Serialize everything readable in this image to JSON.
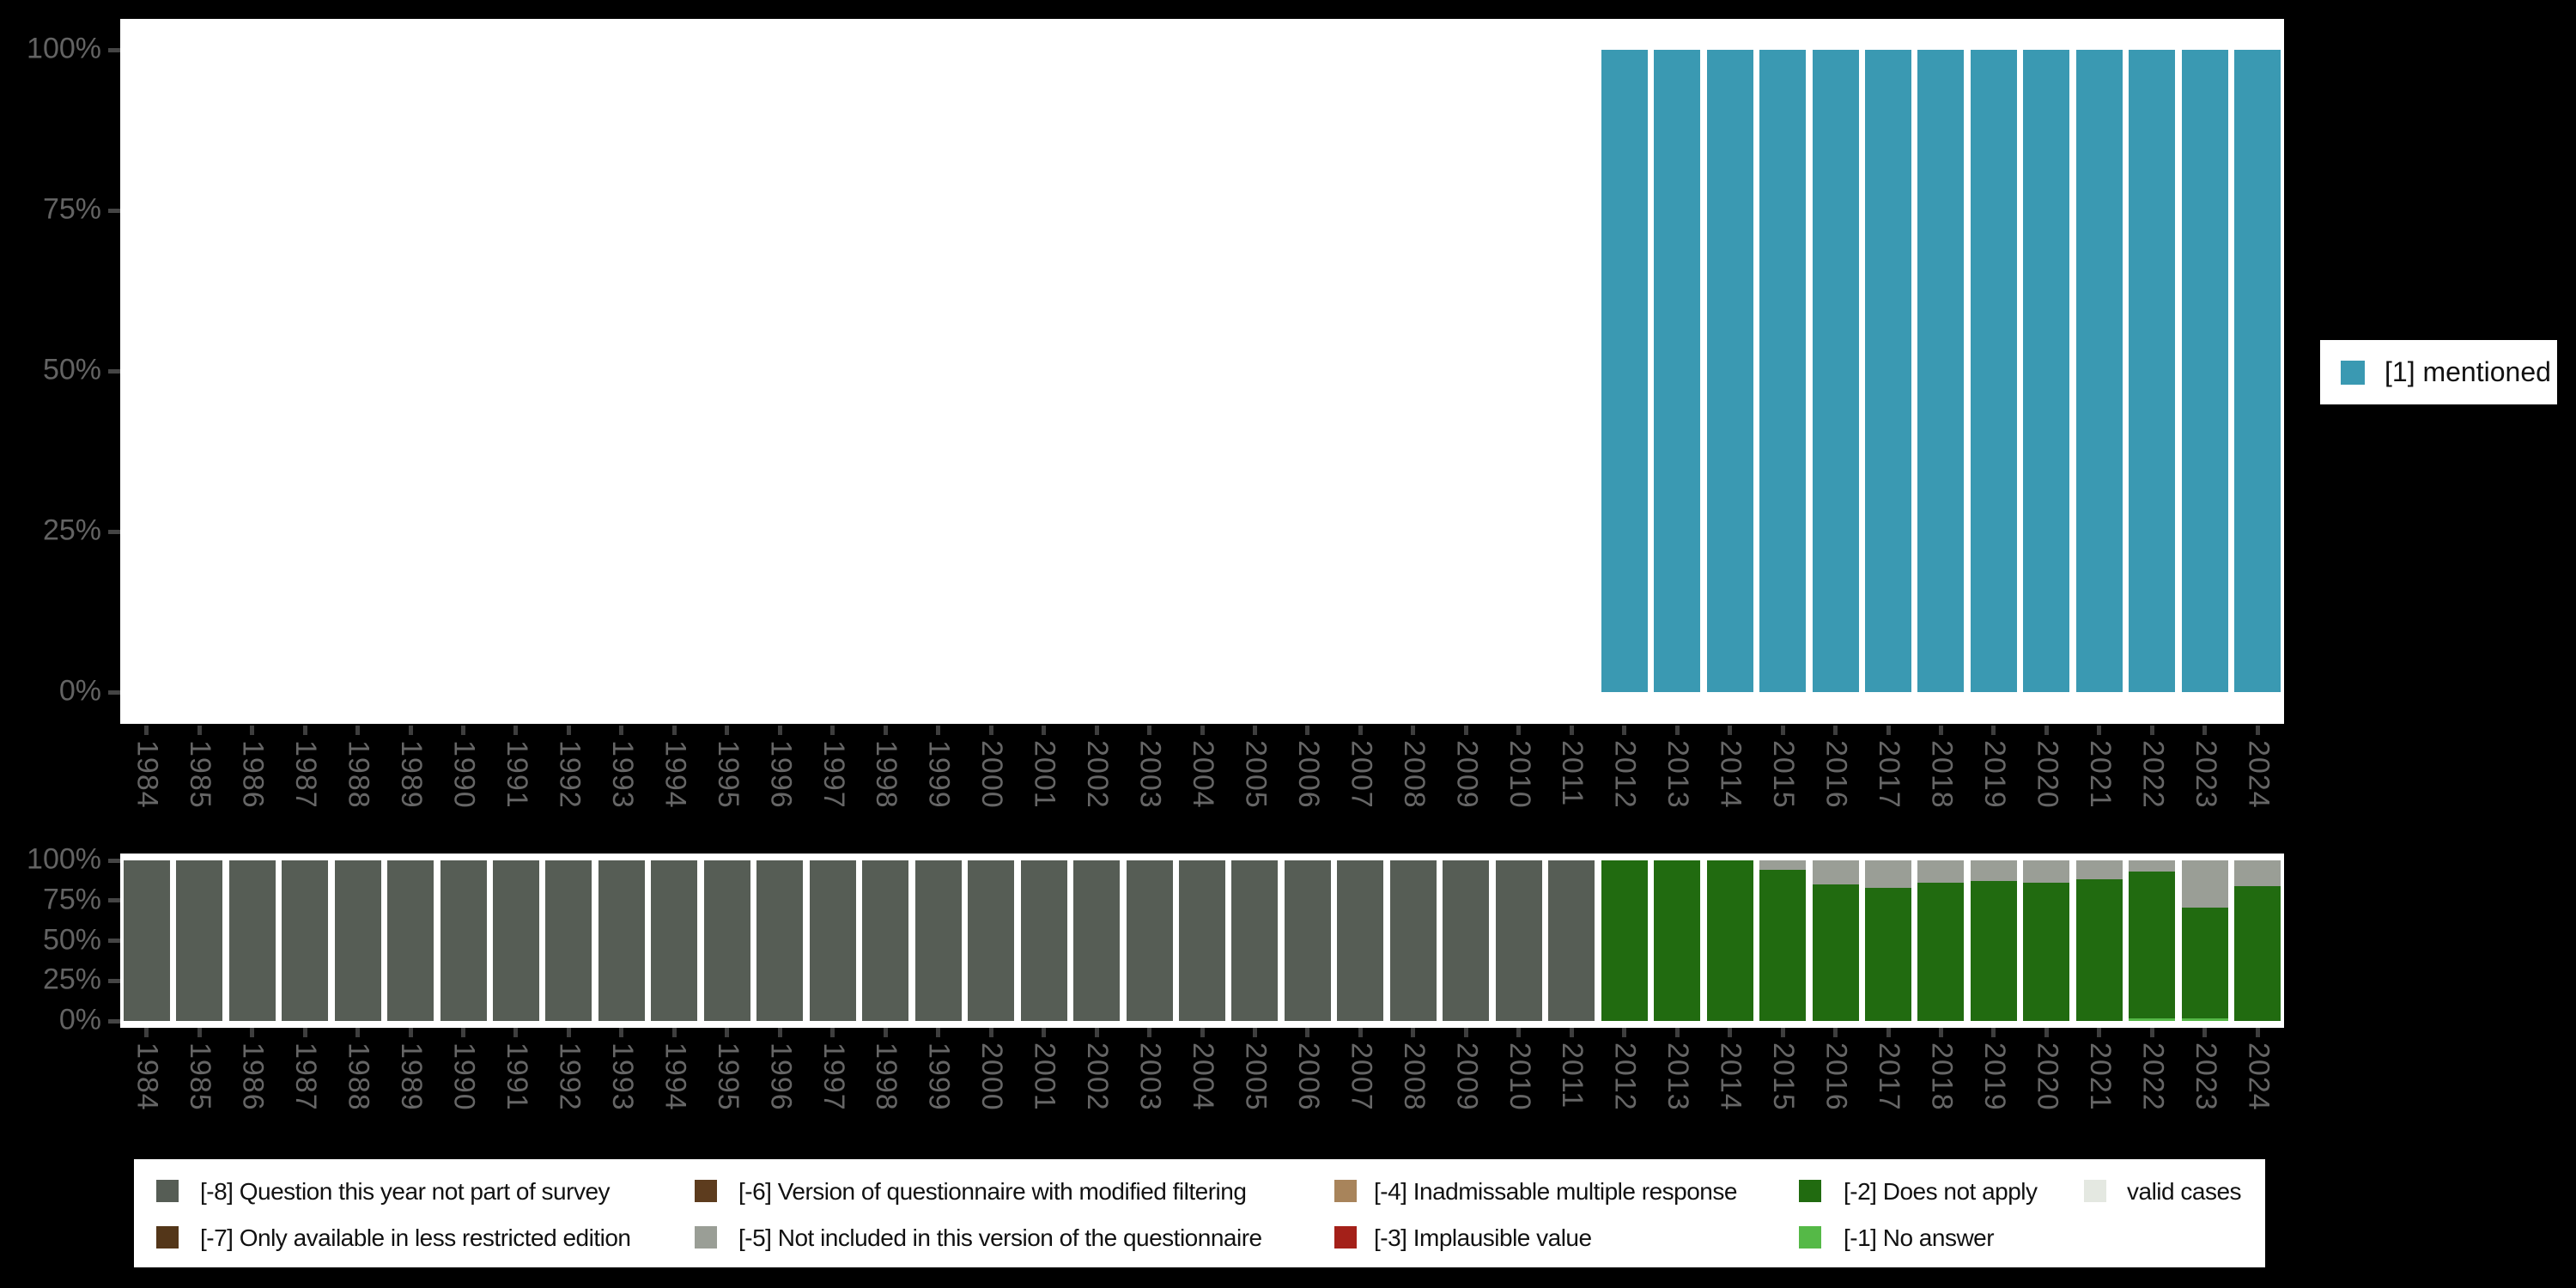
{
  "colors": {
    "background": "#000000",
    "panel": "#FFFFFF",
    "axis_text": "#666666",
    "tick_mark": "#404040",
    "legend_text": "#111111",
    "legend_bg": "#FFFFFF"
  },
  "top_legend": {
    "label": "[1] mentioned",
    "color": "#3A99B2"
  },
  "bottom_legend": {
    "items": [
      {
        "label": "[-8] Question this year not part of survey",
        "color": "#565D55"
      },
      {
        "label": "[-7] Only available in less restricted edition",
        "color": "#533619"
      },
      {
        "label": "[-6] Version of questionnaire with modified filtering",
        "color": "#5D3C1E"
      },
      {
        "label": "[-5] Not included in this version of the questionnaire",
        "color": "#9A9E96"
      },
      {
        "label": "[-4] Inadmissable multiple response",
        "color": "#A8845B"
      },
      {
        "label": "[-3] Implausible value",
        "color": "#A42019"
      },
      {
        "label": "[-2] Does not apply",
        "color": "#216B10"
      },
      {
        "label": "[-1] No answer",
        "color": "#55B947"
      },
      {
        "label": "valid cases",
        "color": "#E4E8E1"
      }
    ]
  },
  "chart_data": [
    {
      "type": "bar",
      "title": "",
      "xlabel": "",
      "ylabel": "",
      "ylim": [
        0,
        100
      ],
      "yticks": [
        "0%",
        "25%",
        "50%",
        "75%",
        "100%"
      ],
      "grid": false,
      "legend_position": "right",
      "categories": [
        "1984",
        "1985",
        "1986",
        "1987",
        "1988",
        "1989",
        "1990",
        "1991",
        "1992",
        "1993",
        "1994",
        "1995",
        "1996",
        "1997",
        "1998",
        "1999",
        "2000",
        "2001",
        "2002",
        "2003",
        "2004",
        "2005",
        "2006",
        "2007",
        "2008",
        "2009",
        "2010",
        "2011",
        "2012",
        "2013",
        "2014",
        "2015",
        "2016",
        "2017",
        "2018",
        "2019",
        "2020",
        "2021",
        "2022",
        "2023",
        "2024"
      ],
      "series": [
        {
          "name": "[1] mentioned",
          "color": "#3A99B2",
          "values": [
            null,
            null,
            null,
            null,
            null,
            null,
            null,
            null,
            null,
            null,
            null,
            null,
            null,
            null,
            null,
            null,
            null,
            null,
            null,
            null,
            null,
            null,
            null,
            null,
            null,
            null,
            null,
            null,
            100,
            100,
            100,
            100,
            100,
            100,
            100,
            100,
            100,
            100,
            100,
            100,
            100
          ]
        }
      ]
    },
    {
      "type": "stacked_bar",
      "title": "",
      "xlabel": "",
      "ylabel": "",
      "ylim": [
        0,
        100
      ],
      "yticks": [
        "0%",
        "25%",
        "50%",
        "75%",
        "100%"
      ],
      "grid": false,
      "legend_position": "bottom",
      "stack_order": "legend order top-to-bottom",
      "categories": [
        "1984",
        "1985",
        "1986",
        "1987",
        "1988",
        "1989",
        "1990",
        "1991",
        "1992",
        "1993",
        "1994",
        "1995",
        "1996",
        "1997",
        "1998",
        "1999",
        "2000",
        "2001",
        "2002",
        "2003",
        "2004",
        "2005",
        "2006",
        "2007",
        "2008",
        "2009",
        "2010",
        "2011",
        "2012",
        "2013",
        "2014",
        "2015",
        "2016",
        "2017",
        "2018",
        "2019",
        "2020",
        "2021",
        "2022",
        "2023",
        "2024"
      ],
      "series": [
        {
          "name": "[-8] Question this year not part of survey",
          "color": "#565D55",
          "values": [
            100,
            100,
            100,
            100,
            100,
            100,
            100,
            100,
            100,
            100,
            100,
            100,
            100,
            100,
            100,
            100,
            100,
            100,
            100,
            100,
            100,
            100,
            100,
            100,
            100,
            100,
            100,
            100,
            0,
            0,
            0,
            0,
            0,
            0,
            0,
            0,
            0,
            0,
            0,
            0,
            0
          ]
        },
        {
          "name": "[-7] Only available in less restricted edition",
          "color": "#533619",
          "values": [
            0,
            0,
            0,
            0,
            0,
            0,
            0,
            0,
            0,
            0,
            0,
            0,
            0,
            0,
            0,
            0,
            0,
            0,
            0,
            0,
            0,
            0,
            0,
            0,
            0,
            0,
            0,
            0,
            0,
            0,
            0,
            0,
            0,
            0,
            0,
            0,
            0,
            0,
            0,
            0,
            0
          ]
        },
        {
          "name": "[-6] Version of questionnaire with modified filtering",
          "color": "#5D3C1E",
          "values": [
            0,
            0,
            0,
            0,
            0,
            0,
            0,
            0,
            0,
            0,
            0,
            0,
            0,
            0,
            0,
            0,
            0,
            0,
            0,
            0,
            0,
            0,
            0,
            0,
            0,
            0,
            0,
            0,
            0,
            0,
            0,
            0,
            0,
            0,
            0,
            0,
            0,
            0,
            0,
            0,
            0
          ]
        },
        {
          "name": "[-5] Not included in this version of the questionnaire",
          "color": "#9A9E96",
          "values": [
            0,
            0,
            0,
            0,
            0,
            0,
            0,
            0,
            0,
            0,
            0,
            0,
            0,
            0,
            0,
            0,
            0,
            0,
            0,
            0,
            0,
            0,
            0,
            0,
            0,
            0,
            0,
            0,
            0,
            0,
            0,
            6,
            15,
            17,
            14,
            13,
            14,
            12,
            7,
            29.5,
            16
          ]
        },
        {
          "name": "[-4] Inadmissable multiple response",
          "color": "#A8845B",
          "values": [
            0,
            0,
            0,
            0,
            0,
            0,
            0,
            0,
            0,
            0,
            0,
            0,
            0,
            0,
            0,
            0,
            0,
            0,
            0,
            0,
            0,
            0,
            0,
            0,
            0,
            0,
            0,
            0,
            0,
            0,
            0,
            0,
            0,
            0,
            0,
            0,
            0,
            0,
            0,
            0,
            0
          ]
        },
        {
          "name": "[-3] Implausible value",
          "color": "#A42019",
          "values": [
            0,
            0,
            0,
            0,
            0,
            0,
            0,
            0,
            0,
            0,
            0,
            0,
            0,
            0,
            0,
            0,
            0,
            0,
            0,
            0,
            0,
            0,
            0,
            0,
            0,
            0,
            0,
            0,
            0,
            0,
            0,
            0,
            0,
            0,
            0,
            0,
            0,
            0,
            0,
            0,
            0
          ]
        },
        {
          "name": "[-2] Does not apply",
          "color": "#216B10",
          "values": [
            0,
            0,
            0,
            0,
            0,
            0,
            0,
            0,
            0,
            0,
            0,
            0,
            0,
            0,
            0,
            0,
            0,
            0,
            0,
            0,
            0,
            0,
            0,
            0,
            0,
            0,
            0,
            0,
            100,
            100,
            100,
            94,
            85,
            83,
            86,
            87,
            86,
            88,
            91.5,
            69,
            84
          ]
        },
        {
          "name": "[-1] No answer",
          "color": "#55B947",
          "values": [
            0,
            0,
            0,
            0,
            0,
            0,
            0,
            0,
            0,
            0,
            0,
            0,
            0,
            0,
            0,
            0,
            0,
            0,
            0,
            0,
            0,
            0,
            0,
            0,
            0,
            0,
            0,
            0,
            0,
            0,
            0,
            0,
            0,
            0,
            0,
            0,
            0,
            0,
            1.5,
            1.5,
            0
          ]
        },
        {
          "name": "valid cases",
          "color": "#E4E8E1",
          "values": [
            0,
            0,
            0,
            0,
            0,
            0,
            0,
            0,
            0,
            0,
            0,
            0,
            0,
            0,
            0,
            0,
            0,
            0,
            0,
            0,
            0,
            0,
            0,
            0,
            0,
            0,
            0,
            0,
            0,
            0,
            0,
            0,
            0,
            0,
            0,
            0,
            0,
            0,
            0,
            0,
            0
          ]
        }
      ]
    }
  ]
}
